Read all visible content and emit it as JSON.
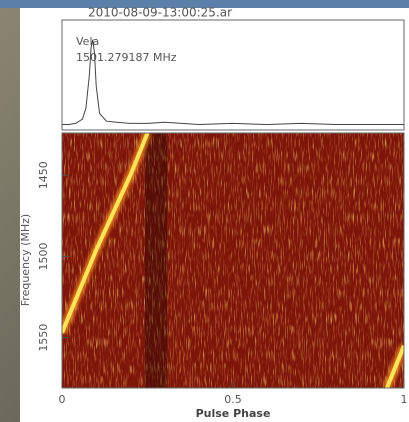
{
  "chart_data": [
    {
      "type": "line",
      "title": "2010-08-09-13:00:25.ar",
      "annotations": [
        "Vela",
        "1501.279187 MHz"
      ],
      "x": [
        0,
        0.02,
        0.04,
        0.06,
        0.07,
        0.08,
        0.085,
        0.09,
        0.095,
        0.1,
        0.11,
        0.13,
        0.16,
        0.2,
        0.25,
        0.3,
        0.4,
        0.5,
        0.6,
        0.7,
        0.8,
        0.9,
        1
      ],
      "values": [
        0.05,
        0.05,
        0.06,
        0.1,
        0.2,
        0.5,
        0.75,
        0.82,
        0.7,
        0.4,
        0.15,
        0.08,
        0.07,
        0.06,
        0.06,
        0.07,
        0.05,
        0.06,
        0.05,
        0.06,
        0.05,
        0.05,
        0.05
      ],
      "color": "#444444",
      "xlim": [
        0,
        1
      ],
      "ylim": [
        0,
        1
      ]
    },
    {
      "type": "heatmap",
      "xlabel": "Pulse Phase",
      "ylabel": "Frequency (MHz)",
      "x": [
        0,
        0.1,
        0.2,
        0.25,
        null,
        0.95,
        1
      ],
      "values": [
        1547,
        1496,
        1450,
        1424,
        null,
        1581,
        1555
      ],
      "color": "#ffe45a",
      "background": "#7e1509",
      "xlim": [
        0,
        1
      ],
      "ylim": [
        1424,
        1581
      ],
      "xticks": [
        0,
        0.5,
        1
      ],
      "yticks": [
        1450,
        1500,
        1550
      ]
    }
  ]
}
